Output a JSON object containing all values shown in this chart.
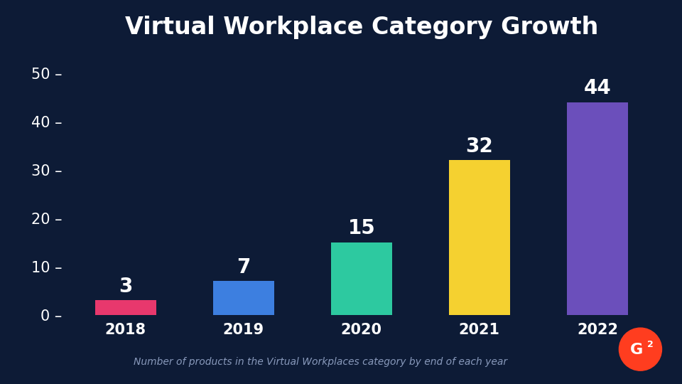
{
  "title": "Virtual Workplace Category Growth",
  "categories": [
    "2018",
    "2019",
    "2020",
    "2021",
    "2022"
  ],
  "values": [
    3,
    7,
    15,
    32,
    44
  ],
  "bar_colors": [
    "#E8386D",
    "#3D7FE0",
    "#2DC9A0",
    "#F5D130",
    "#6B4FBB"
  ],
  "background_color": "#0D1B36",
  "text_color": "#FFFFFF",
  "ytick_values": [
    0,
    10,
    20,
    30,
    40,
    50
  ],
  "ylim": [
    0,
    54
  ],
  "caption": "Number of products in the Virtual Workplaces category by end of each year",
  "title_fontsize": 24,
  "label_fontsize": 20,
  "tick_fontsize": 15,
  "caption_fontsize": 10,
  "bar_width": 0.52,
  "g2_color": "#FF3D1F",
  "caption_color": "#8899BB"
}
